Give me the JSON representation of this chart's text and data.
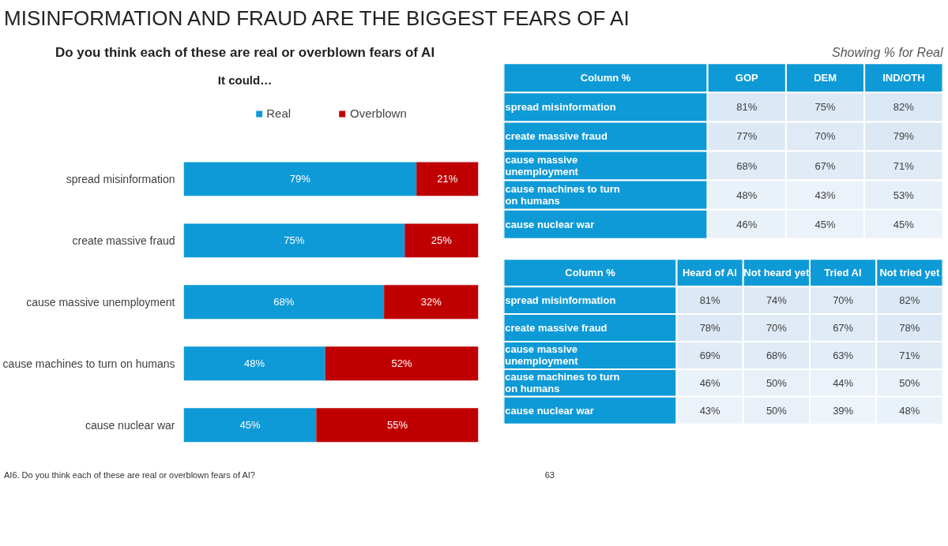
{
  "chart_data": [
    {
      "type": "bar",
      "orientation": "horizontal",
      "stacked": true,
      "title": "Do you think each of these are real or overblown fears of AI",
      "subtitle": "It could…",
      "legend": "top",
      "categories": [
        "spread misinformation",
        "create massive fraud",
        "cause massive unemployment",
        "cause machines to turn on humans",
        "cause nuclear war"
      ],
      "series": [
        {
          "name": "Real",
          "color": "#0e9ad7",
          "values": [
            79,
            75,
            68,
            48,
            45
          ],
          "value_labels": [
            "79%",
            "75%",
            "68%",
            "48%",
            "45%"
          ]
        },
        {
          "name": "Overblown",
          "color": "#c00000",
          "values": [
            21,
            25,
            32,
            52,
            55
          ],
          "value_labels": [
            "21%",
            "25%",
            "32%",
            "52%",
            "55%"
          ]
        }
      ],
      "annotations": [
        "MISINFORMATION AND FRAUD ARE THE BIGGEST FEARS OF AI",
        "AI6. Do you think each of these are real or overblown fears of AI?",
        "63"
      ]
    },
    {
      "type": "heatmap",
      "title": "Showing % for Real",
      "ylabel": "Column %",
      "colors": [
        "#0e9ad7",
        "#dae7f4"
      ],
      "categories": [
        "GOP",
        "DEM",
        "IND/OTH"
      ],
      "y_categories": [
        "spread misinformation",
        "create massive fraud",
        "cause massive unemployment",
        "cause machines to turn on humans",
        "cause nuclear war"
      ],
      "cells": [
        [
          81,
          75,
          82
        ],
        [
          77,
          70,
          79
        ],
        [
          68,
          67,
          71
        ],
        [
          48,
          43,
          53
        ],
        [
          46,
          45,
          45
        ]
      ],
      "cell_labels": [
        [
          "81%",
          "75%",
          "82%"
        ],
        [
          "77%",
          "70%",
          "79%"
        ],
        [
          "68%",
          "67%",
          "71%"
        ],
        [
          "48%",
          "43%",
          "53%"
        ],
        [
          "46%",
          "45%",
          "45%"
        ]
      ]
    },
    {
      "type": "heatmap",
      "ylabel": "Column %",
      "colors": [
        "#0e9ad7",
        "#dae7f4"
      ],
      "categories": [
        "Heard of AI",
        "Not heard yet",
        "Tried AI",
        "Not tried yet"
      ],
      "y_categories": [
        "spread misinformation",
        "create massive fraud",
        "cause massive unemployment",
        "cause machines to turn on humans",
        "cause nuclear war"
      ],
      "cells": [
        [
          81,
          74,
          70,
          82
        ],
        [
          78,
          70,
          67,
          78
        ],
        [
          69,
          68,
          63,
          71
        ],
        [
          46,
          50,
          44,
          50
        ],
        [
          43,
          50,
          39,
          48
        ]
      ],
      "cell_labels": [
        [
          "81%",
          "74%",
          "70%",
          "82%"
        ],
        [
          "78%",
          "70%",
          "67%",
          "78%"
        ],
        [
          "69%",
          "68%",
          "63%",
          "71%"
        ],
        [
          "46%",
          "50%",
          "44%",
          "50%"
        ],
        [
          "43%",
          "50%",
          "39%",
          "48%"
        ]
      ]
    }
  ]
}
